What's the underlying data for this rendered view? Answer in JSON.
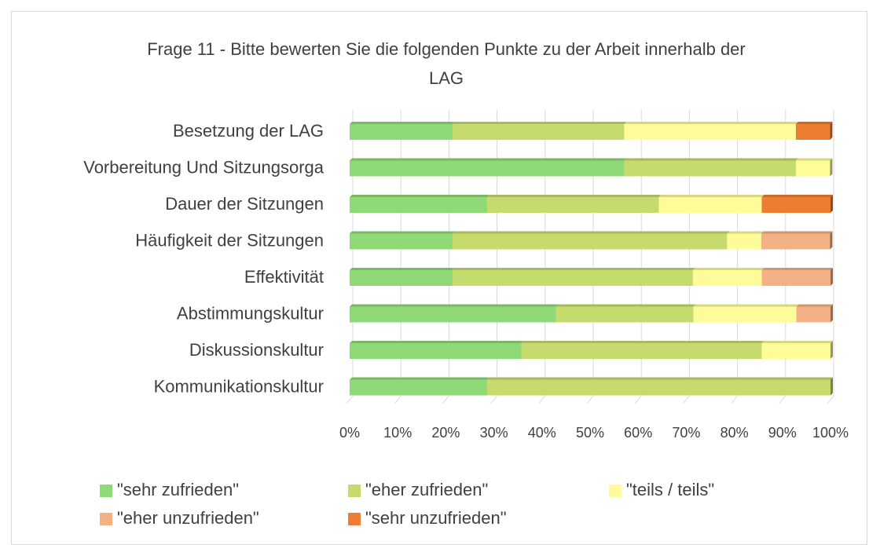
{
  "chart_data": {
    "type": "stacked-bar-horizontal",
    "title": "Frage 11 - Bitte bewerten Sie die folgenden Punkte zu der Arbeit innerhalb der LAG",
    "categories": [
      "Besetzung der LAG",
      "Vorbereitung Und Sitzungsorga",
      "Dauer der Sitzungen",
      "Häufigkeit der Sitzungen",
      "Effektivität",
      "Abstimmungskultur",
      "Diskussionskultur",
      "Kommunikationskultur"
    ],
    "series": [
      {
        "name": "\"sehr zufrieden\"",
        "color": "#8fd977",
        "values": [
          21.4,
          57.1,
          28.6,
          21.4,
          21.4,
          42.9,
          35.7,
          28.6
        ]
      },
      {
        "name": "\"eher zufrieden\"",
        "color": "#c6db6e",
        "values": [
          35.7,
          35.7,
          35.7,
          57.1,
          50,
          28.6,
          50,
          71.4
        ]
      },
      {
        "name": "\"teils / teils\"",
        "color": "#fdfc98",
        "values": [
          35.7,
          7.1,
          21.4,
          7.1,
          14.3,
          21.4,
          14.3,
          0
        ]
      },
      {
        "name": "\"eher unzufrieden\"",
        "color": "#f4b183",
        "values": [
          0,
          0,
          0,
          14.3,
          14.3,
          7.1,
          0,
          0
        ]
      },
      {
        "name": "\"sehr unzufrieden\"",
        "color": "#ed7d31",
        "values": [
          7.1,
          0,
          14.3,
          0,
          0,
          0,
          0,
          0
        ]
      }
    ],
    "xlim": [
      0,
      100
    ],
    "xticks": [
      {
        "value": 0,
        "label": "0%"
      },
      {
        "value": 10,
        "label": "10%"
      },
      {
        "value": 20,
        "label": "20%"
      },
      {
        "value": 30,
        "label": "30%"
      },
      {
        "value": 40,
        "label": "40%"
      },
      {
        "value": 50,
        "label": "50%"
      },
      {
        "value": 60,
        "label": "60%"
      },
      {
        "value": 70,
        "label": "70%"
      },
      {
        "value": 80,
        "label": "80%"
      },
      {
        "value": 90,
        "label": "90%"
      },
      {
        "value": 100,
        "label": "100%"
      }
    ],
    "grid": true,
    "legend": "bottom"
  }
}
